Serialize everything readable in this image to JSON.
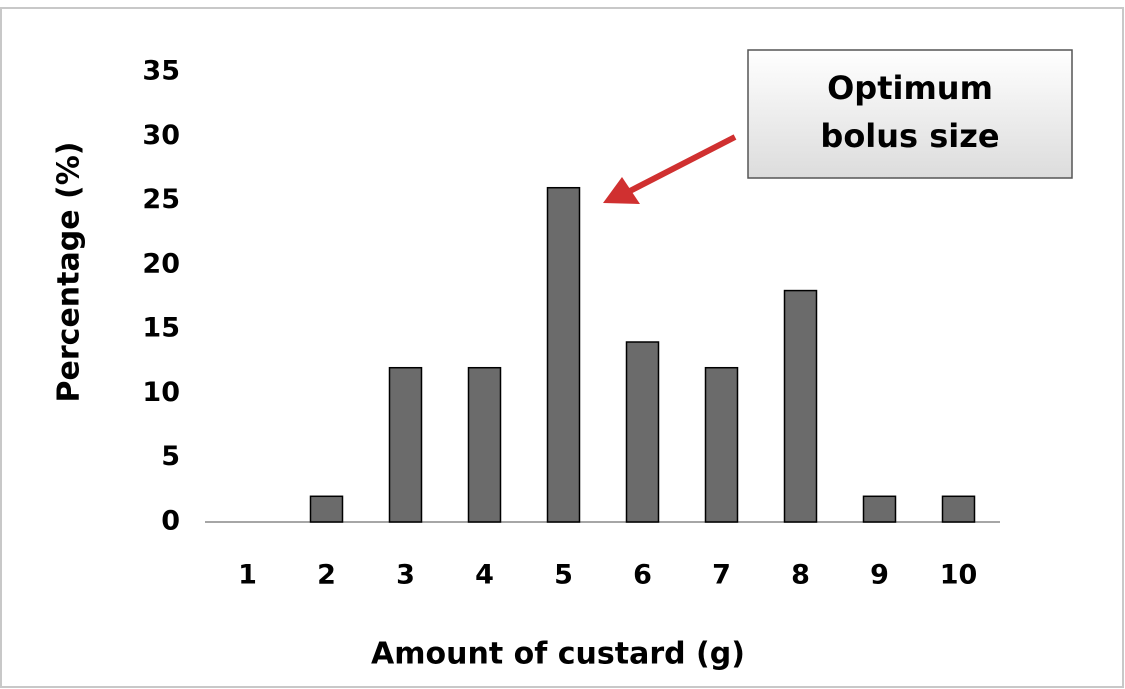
{
  "chart_data": {
    "type": "bar",
    "categories": [
      "1",
      "2",
      "3",
      "4",
      "5",
      "6",
      "7",
      "8",
      "9",
      "10"
    ],
    "values": [
      0,
      2,
      12,
      12,
      26,
      14,
      12,
      18,
      2,
      2
    ],
    "color": "#6b6b6b",
    "ylim": [
      0,
      35
    ],
    "yticks": [
      0,
      5,
      10,
      15,
      20,
      25,
      30,
      35
    ],
    "xlabel": "Amount of custard (g)",
    "ylabel": "Percentage (%)",
    "annotation": [
      "Optimum",
      "bolus size"
    ],
    "grid": false
  }
}
